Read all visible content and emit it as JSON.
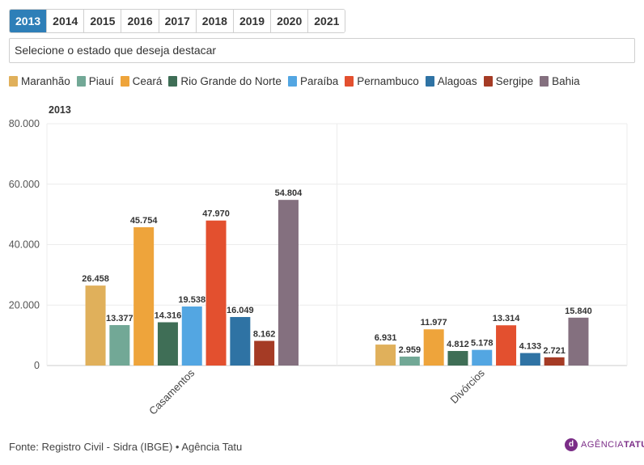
{
  "tabs": [
    "2013",
    "2014",
    "2015",
    "2016",
    "2017",
    "2018",
    "2019",
    "2020",
    "2021"
  ],
  "active_tab": "2013",
  "select_placeholder": "Selecione o estado que deseja destacar",
  "footer": "Fonte: Registro Civil - Sidra (IBGE) • Agência Tatu",
  "logo": {
    "mark": "d",
    "text_light": "AGÊNCIA",
    "text_bold": "TATU"
  },
  "chart_data": {
    "type": "bar",
    "title": "2013",
    "categories": [
      "Casamentos",
      "Divórcios"
    ],
    "ylim": [
      0,
      80000
    ],
    "yticks": [
      0,
      20000,
      40000,
      60000,
      80000
    ],
    "ytick_labels": [
      "0",
      "20.000",
      "40.000",
      "60.000",
      "80.000"
    ],
    "grid": true,
    "legend_position": "top",
    "series": [
      {
        "name": "Maranhão",
        "color": "#e0b05b",
        "values": [
          26458,
          6931
        ],
        "labels": [
          "26.458",
          "6.931"
        ]
      },
      {
        "name": "Piauí",
        "color": "#72a896",
        "values": [
          13377,
          2959
        ],
        "labels": [
          "13.377",
          "2.959"
        ]
      },
      {
        "name": "Ceará",
        "color": "#eea43b",
        "values": [
          45754,
          11977
        ],
        "labels": [
          "45.754",
          "11.977"
        ]
      },
      {
        "name": "Rio Grande do Norte",
        "color": "#3f6e56",
        "values": [
          14316,
          4812
        ],
        "labels": [
          "14.316",
          "4.812"
        ]
      },
      {
        "name": "Paraíba",
        "color": "#53a6e2",
        "values": [
          19538,
          5178
        ],
        "labels": [
          "19.538",
          "5.178"
        ]
      },
      {
        "name": "Pernambuco",
        "color": "#e3502f",
        "values": [
          47970,
          13314
        ],
        "labels": [
          "47.970",
          "13.314"
        ]
      },
      {
        "name": "Alagoas",
        "color": "#2f73a4",
        "values": [
          16049,
          4133
        ],
        "labels": [
          "16.049",
          "4.133"
        ]
      },
      {
        "name": "Sergipe",
        "color": "#a53b25",
        "values": [
          8162,
          2721
        ],
        "labels": [
          "8.162",
          "2.721"
        ]
      },
      {
        "name": "Bahia",
        "color": "#84707f",
        "values": [
          54804,
          15840
        ],
        "labels": [
          "54.804",
          "15.840"
        ]
      }
    ]
  }
}
